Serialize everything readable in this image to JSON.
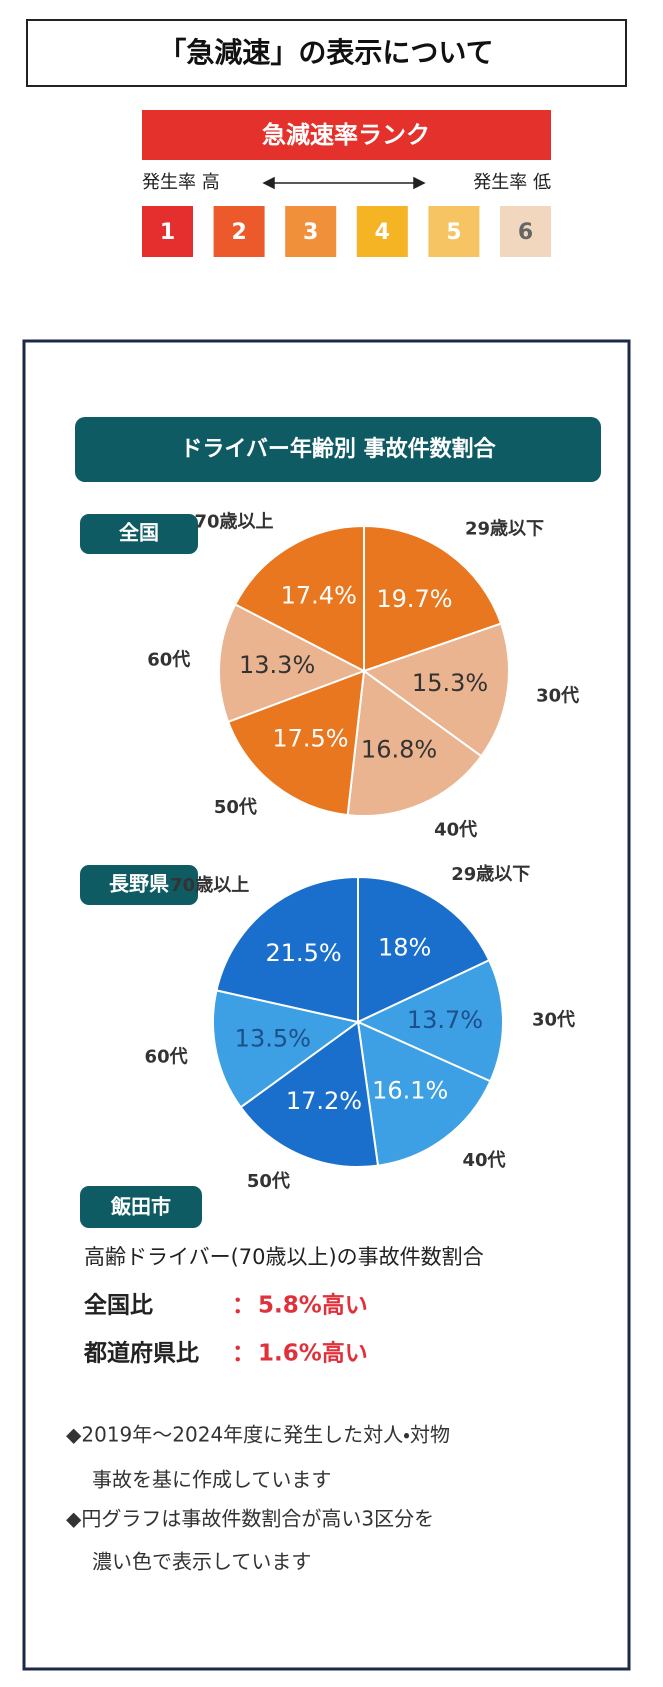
{
  "title": "「急減速」の表示について",
  "rank": {
    "title": "急減速率ランク",
    "high_label": "発生率 高",
    "low_label": "発生率 低",
    "ranks": [
      1,
      2,
      3,
      4,
      5,
      6
    ],
    "colors": [
      "#e52f2f",
      "#ec5a2c",
      "#f0903a",
      "#f4b424",
      "#f6c462",
      "#f2d7bf"
    ],
    "text_colors": [
      "#ffffff",
      "#ffffff",
      "#ffffff",
      "#ffffff",
      "#ffffff",
      "#666666"
    ]
  },
  "panel_title": "ドライバー年齢別 事故件数割合",
  "chart_data": [
    {
      "type": "pie",
      "label": "全国",
      "categories": [
        "29歳以下",
        "30代",
        "40代",
        "50代",
        "60代",
        "70歳以上"
      ],
      "values": [
        19.7,
        15.3,
        16.8,
        17.5,
        13.3,
        17.4
      ],
      "value_labels": [
        "19.7%",
        "15.3%",
        "16.8%",
        "17.5%",
        "13.3%",
        "17.4%"
      ],
      "colors": [
        "#e8771f",
        "#e9b48f",
        "#e9b48f",
        "#e8771f",
        "#e9b48f",
        "#e8771f"
      ],
      "text_colors": [
        "#ffffff",
        "#333333",
        "#333333",
        "#ffffff",
        "#333333",
        "#ffffff"
      ]
    },
    {
      "type": "pie",
      "label": "長野県",
      "categories": [
        "29歳以下",
        "30代",
        "40代",
        "50代",
        "60代",
        "70歳以上"
      ],
      "values": [
        18,
        13.7,
        16.1,
        17.2,
        13.5,
        21.5
      ],
      "value_labels": [
        "18%",
        "13.7%",
        "16.1%",
        "17.2%",
        "13.5%",
        "21.5%"
      ],
      "colors": [
        "#1a6fcc",
        "#3d9fe4",
        "#3d9fe4",
        "#1a6fcc",
        "#3d9fe4",
        "#1a6fcc"
      ],
      "text_colors": [
        "#ffffff",
        "#1d4f8a",
        "#ffffff",
        "#ffffff",
        "#1d4f8a",
        "#ffffff"
      ]
    }
  ],
  "iida": {
    "label": "飯田市",
    "heading": "高齢ドライバー(70歳以上)の事故件数割合",
    "rows": [
      {
        "label": "全国比",
        "sep": "：",
        "value": "5.8%高い"
      },
      {
        "label": "都道府県比",
        "sep": "：",
        "value": "1.6%高い"
      }
    ]
  },
  "notes": [
    "◆2019年～2024年度に発生した対人・対物",
    "事故を基に作成しています",
    "◆円グラフは事故件数割合が高い3区分を",
    "濃い色で表示しています"
  ]
}
